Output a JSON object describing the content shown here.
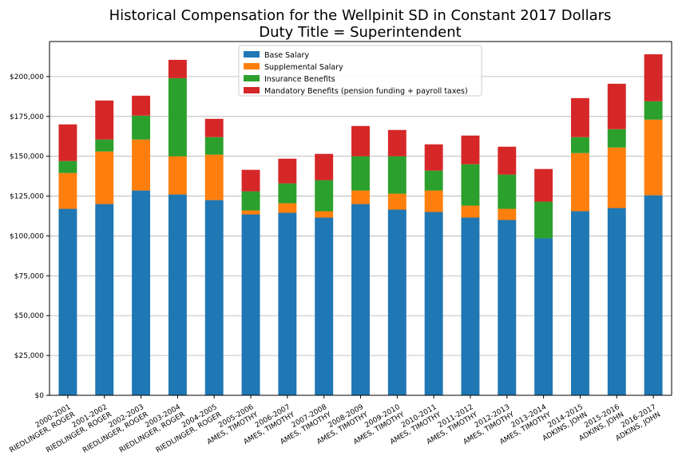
{
  "chart_data": {
    "type": "bar",
    "stacked": true,
    "title": "Historical Compensation for the Wellpinit SD in Constant 2017 Dollars",
    "subtitle": "Duty Title = Superintendent",
    "xlabel": "",
    "ylabel": "",
    "ylim": [
      0,
      222000
    ],
    "yticks": [
      0,
      25000,
      50000,
      75000,
      100000,
      125000,
      150000,
      175000,
      200000
    ],
    "ytick_labels": [
      "$0",
      "$25,000",
      "$50,000",
      "$75,000",
      "$100,000",
      "$125,000",
      "$150,000",
      "$175,000",
      "$200,000"
    ],
    "grid": "horizontal",
    "legend_position": "top-center",
    "categories": [
      [
        "2000-2001",
        "RIEDLINGER, ROGER"
      ],
      [
        "2001-2002",
        "RIEDLINGER, ROGER"
      ],
      [
        "2002-2003",
        "RIEDLINGER, ROGER"
      ],
      [
        "2003-2004",
        "RIEDLINGER, ROGER"
      ],
      [
        "2004-2005",
        "RIEDLINGER, ROGER"
      ],
      [
        "2005-2006",
        "AMES, TIMOTHY"
      ],
      [
        "2006-2007",
        "AMES, TIMOTHY"
      ],
      [
        "2007-2008",
        "AMES, TIMOTHY"
      ],
      [
        "2008-2009",
        "AMES, TIMOTHY"
      ],
      [
        "2009-2010",
        "AMES, TIMOTHY"
      ],
      [
        "2010-2011",
        "AMES, TIMOTHY"
      ],
      [
        "2011-2012",
        "AMES, TIMOTHY"
      ],
      [
        "2012-2013",
        "AMES, TIMOTHY"
      ],
      [
        "2013-2014",
        "AMES, TIMOTHY"
      ],
      [
        "2014-2015",
        "ADKINS, JOHN"
      ],
      [
        "2015-2016",
        "ADKINS, JOHN"
      ],
      [
        "2016-2017",
        "ADKINS, JOHN"
      ]
    ],
    "series": [
      {
        "name": "Base Salary",
        "color": "#1f77b4",
        "values": [
          117000,
          120000,
          128500,
          126000,
          122500,
          113500,
          114500,
          111500,
          120000,
          116500,
          115000,
          111500,
          110000,
          98500,
          115500,
          117500,
          125500
        ]
      },
      {
        "name": "Supplemental Salary",
        "color": "#ff7f0e",
        "values": [
          22500,
          33000,
          32000,
          24000,
          28500,
          2500,
          6000,
          4000,
          8500,
          10000,
          13500,
          7500,
          7000,
          0,
          36500,
          38000,
          47500
        ]
      },
      {
        "name": "Insurance Benefits",
        "color": "#2ca02c",
        "values": [
          7500,
          7500,
          15000,
          49000,
          11000,
          12000,
          12500,
          19500,
          21500,
          23500,
          12500,
          26000,
          21500,
          23000,
          10000,
          11500,
          11500
        ]
      },
      {
        "name": "Mandatory Benefits (pension funding + payroll taxes)",
        "color": "#d62728",
        "values": [
          23000,
          24500,
          12500,
          11500,
          11500,
          13500,
          15500,
          16500,
          19000,
          16500,
          16500,
          18000,
          17500,
          20500,
          24500,
          28500,
          29500
        ]
      }
    ]
  }
}
